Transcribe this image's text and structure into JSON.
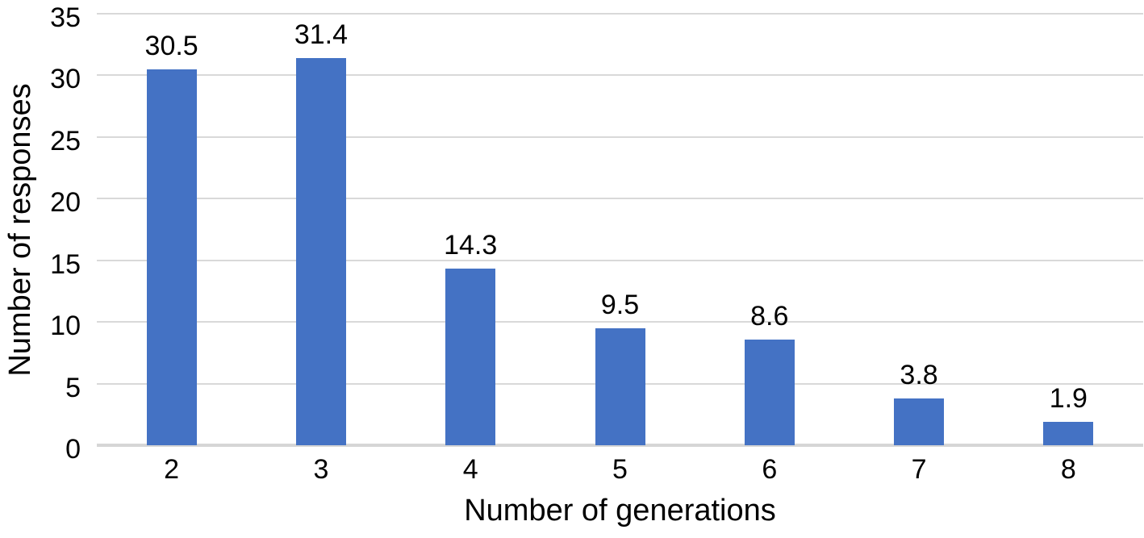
{
  "chart_data": {
    "type": "bar",
    "title": "",
    "xlabel": "Number of generations",
    "ylabel": "Number of responses",
    "categories": [
      "2",
      "3",
      "4",
      "5",
      "6",
      "7",
      "8"
    ],
    "values": [
      30.5,
      31.4,
      14.3,
      9.5,
      8.6,
      3.8,
      1.9
    ],
    "data_labels": [
      "30.5",
      "31.4",
      "14.3",
      "9.5",
      "8.6",
      "3.8",
      "1.9"
    ],
    "y_ticks": [
      0,
      5,
      10,
      15,
      20,
      25,
      30,
      35
    ],
    "ylim": [
      0,
      35
    ],
    "grid": "horizontal",
    "legend": "none",
    "bar_color": "#4472C4",
    "gridline_color": "#D9D9D9",
    "axis_line_color": "#D6D6D6",
    "text_color": "#000000"
  }
}
